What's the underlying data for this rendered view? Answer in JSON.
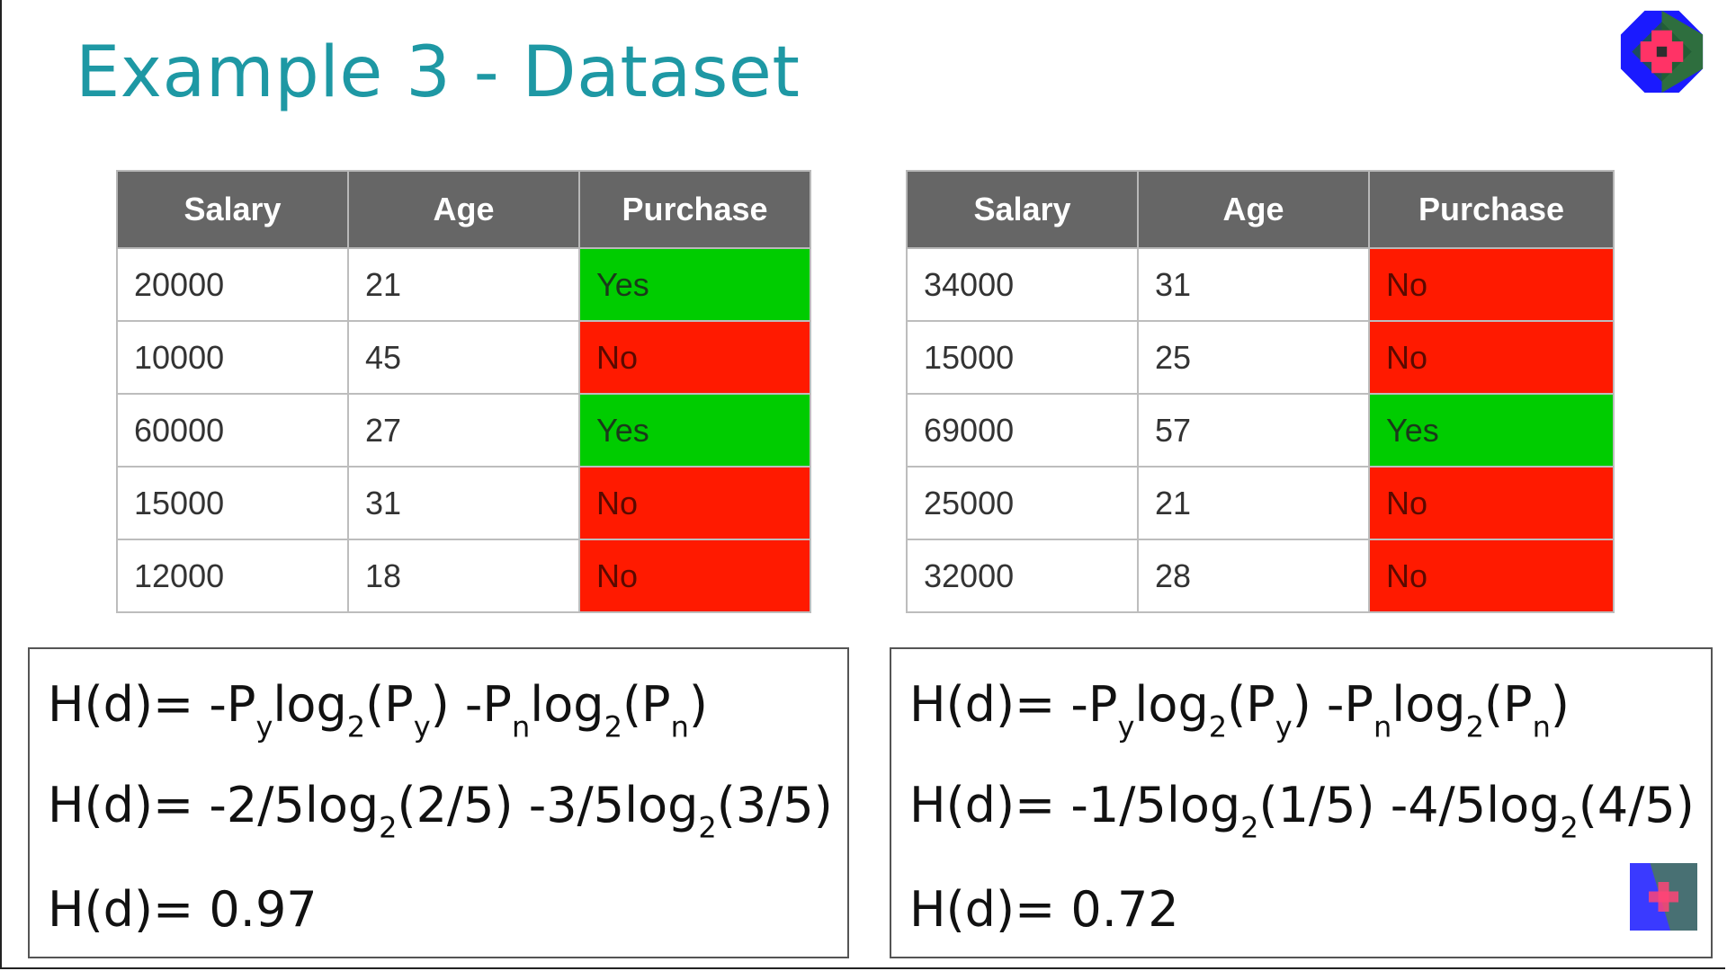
{
  "slide": {
    "title": "Example 3 - Dataset"
  },
  "table_left": {
    "headers": [
      "Salary",
      "Age",
      "Purchase"
    ],
    "rows": [
      {
        "salary": "20000",
        "age": "21",
        "purchase": "Yes"
      },
      {
        "salary": "10000",
        "age": "45",
        "purchase": "No"
      },
      {
        "salary": "60000",
        "age": "27",
        "purchase": "Yes"
      },
      {
        "salary": "15000",
        "age": "31",
        "purchase": "No"
      },
      {
        "salary": "12000",
        "age": "18",
        "purchase": "No"
      }
    ]
  },
  "table_right": {
    "headers": [
      "Salary",
      "Age",
      "Purchase"
    ],
    "rows": [
      {
        "salary": "34000",
        "age": "31",
        "purchase": "No"
      },
      {
        "salary": "15000",
        "age": "25",
        "purchase": "No"
      },
      {
        "salary": "69000",
        "age": "57",
        "purchase": "Yes"
      },
      {
        "salary": "25000",
        "age": "21",
        "purchase": "No"
      },
      {
        "salary": "32000",
        "age": "28",
        "purchase": "No"
      }
    ]
  },
  "formula_left": {
    "line1": {
      "a": "H(d)= -P",
      "s1": "y",
      "b": "log",
      "s2": "2",
      "c": "(P",
      "s3": "y",
      "d": ") -P",
      "s4": "n",
      "e": "log",
      "s5": "2",
      "f": "(P",
      "s6": "n",
      "g": ")"
    },
    "line2": {
      "a": "H(d)= -2/5log",
      "s1": "2",
      "b": "(2/5) -3/5log",
      "s2": "2",
      "c": "(3/5)"
    },
    "line3": "H(d)= 0.97"
  },
  "formula_right": {
    "line1": {
      "a": "H(d)= -P",
      "s1": "y",
      "b": "log",
      "s2": "2",
      "c": "(P",
      "s3": "y",
      "d": ") -P",
      "s4": "n",
      "e": "log",
      "s5": "2",
      "f": "(P",
      "s6": "n",
      "g": ")"
    },
    "line2": {
      "a": "H(d)= -1/5log",
      "s1": "2",
      "b": "(1/5) -4/5log",
      "s2": "2",
      "c": "(4/5)"
    },
    "line3": "H(d)= 0.72"
  },
  "colors": {
    "title": "#1e98a4",
    "header_bg": "#666666",
    "yes": "#00cc00",
    "no": "#ff1a00"
  },
  "icons": [
    "logo-icon"
  ]
}
